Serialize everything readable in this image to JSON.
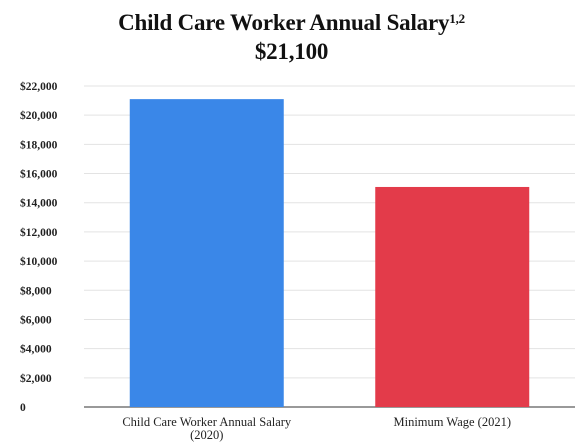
{
  "chart_data": {
    "type": "bar",
    "title": "Child Care Worker Annual Salary",
    "title_superscript": "1,2",
    "subtitle": "$21,100",
    "categories": [
      "Child Care Worker Annual Salary (2020)",
      "Minimum Wage (2021)"
    ],
    "category_lines": [
      [
        "Child Care Worker Annual Salary",
        "(2020)"
      ],
      [
        "Minimum Wage (2021)"
      ]
    ],
    "values": [
      21100,
      15080
    ],
    "colors": [
      "#3a87e8",
      "#e33b4a"
    ],
    "ylim": [
      0,
      22000
    ],
    "yticks": [
      0,
      2000,
      4000,
      6000,
      8000,
      10000,
      12000,
      14000,
      16000,
      18000,
      20000,
      22000
    ],
    "ytick_labels": [
      "0",
      "$2,000",
      "$4,000",
      "$6,000",
      "$8,000",
      "$10,000",
      "$12,000",
      "$14,000",
      "$16,000",
      "$18,000",
      "$20,000",
      "$22,000"
    ],
    "xlabel": "",
    "ylabel": "",
    "grid": true,
    "legend": "none"
  }
}
